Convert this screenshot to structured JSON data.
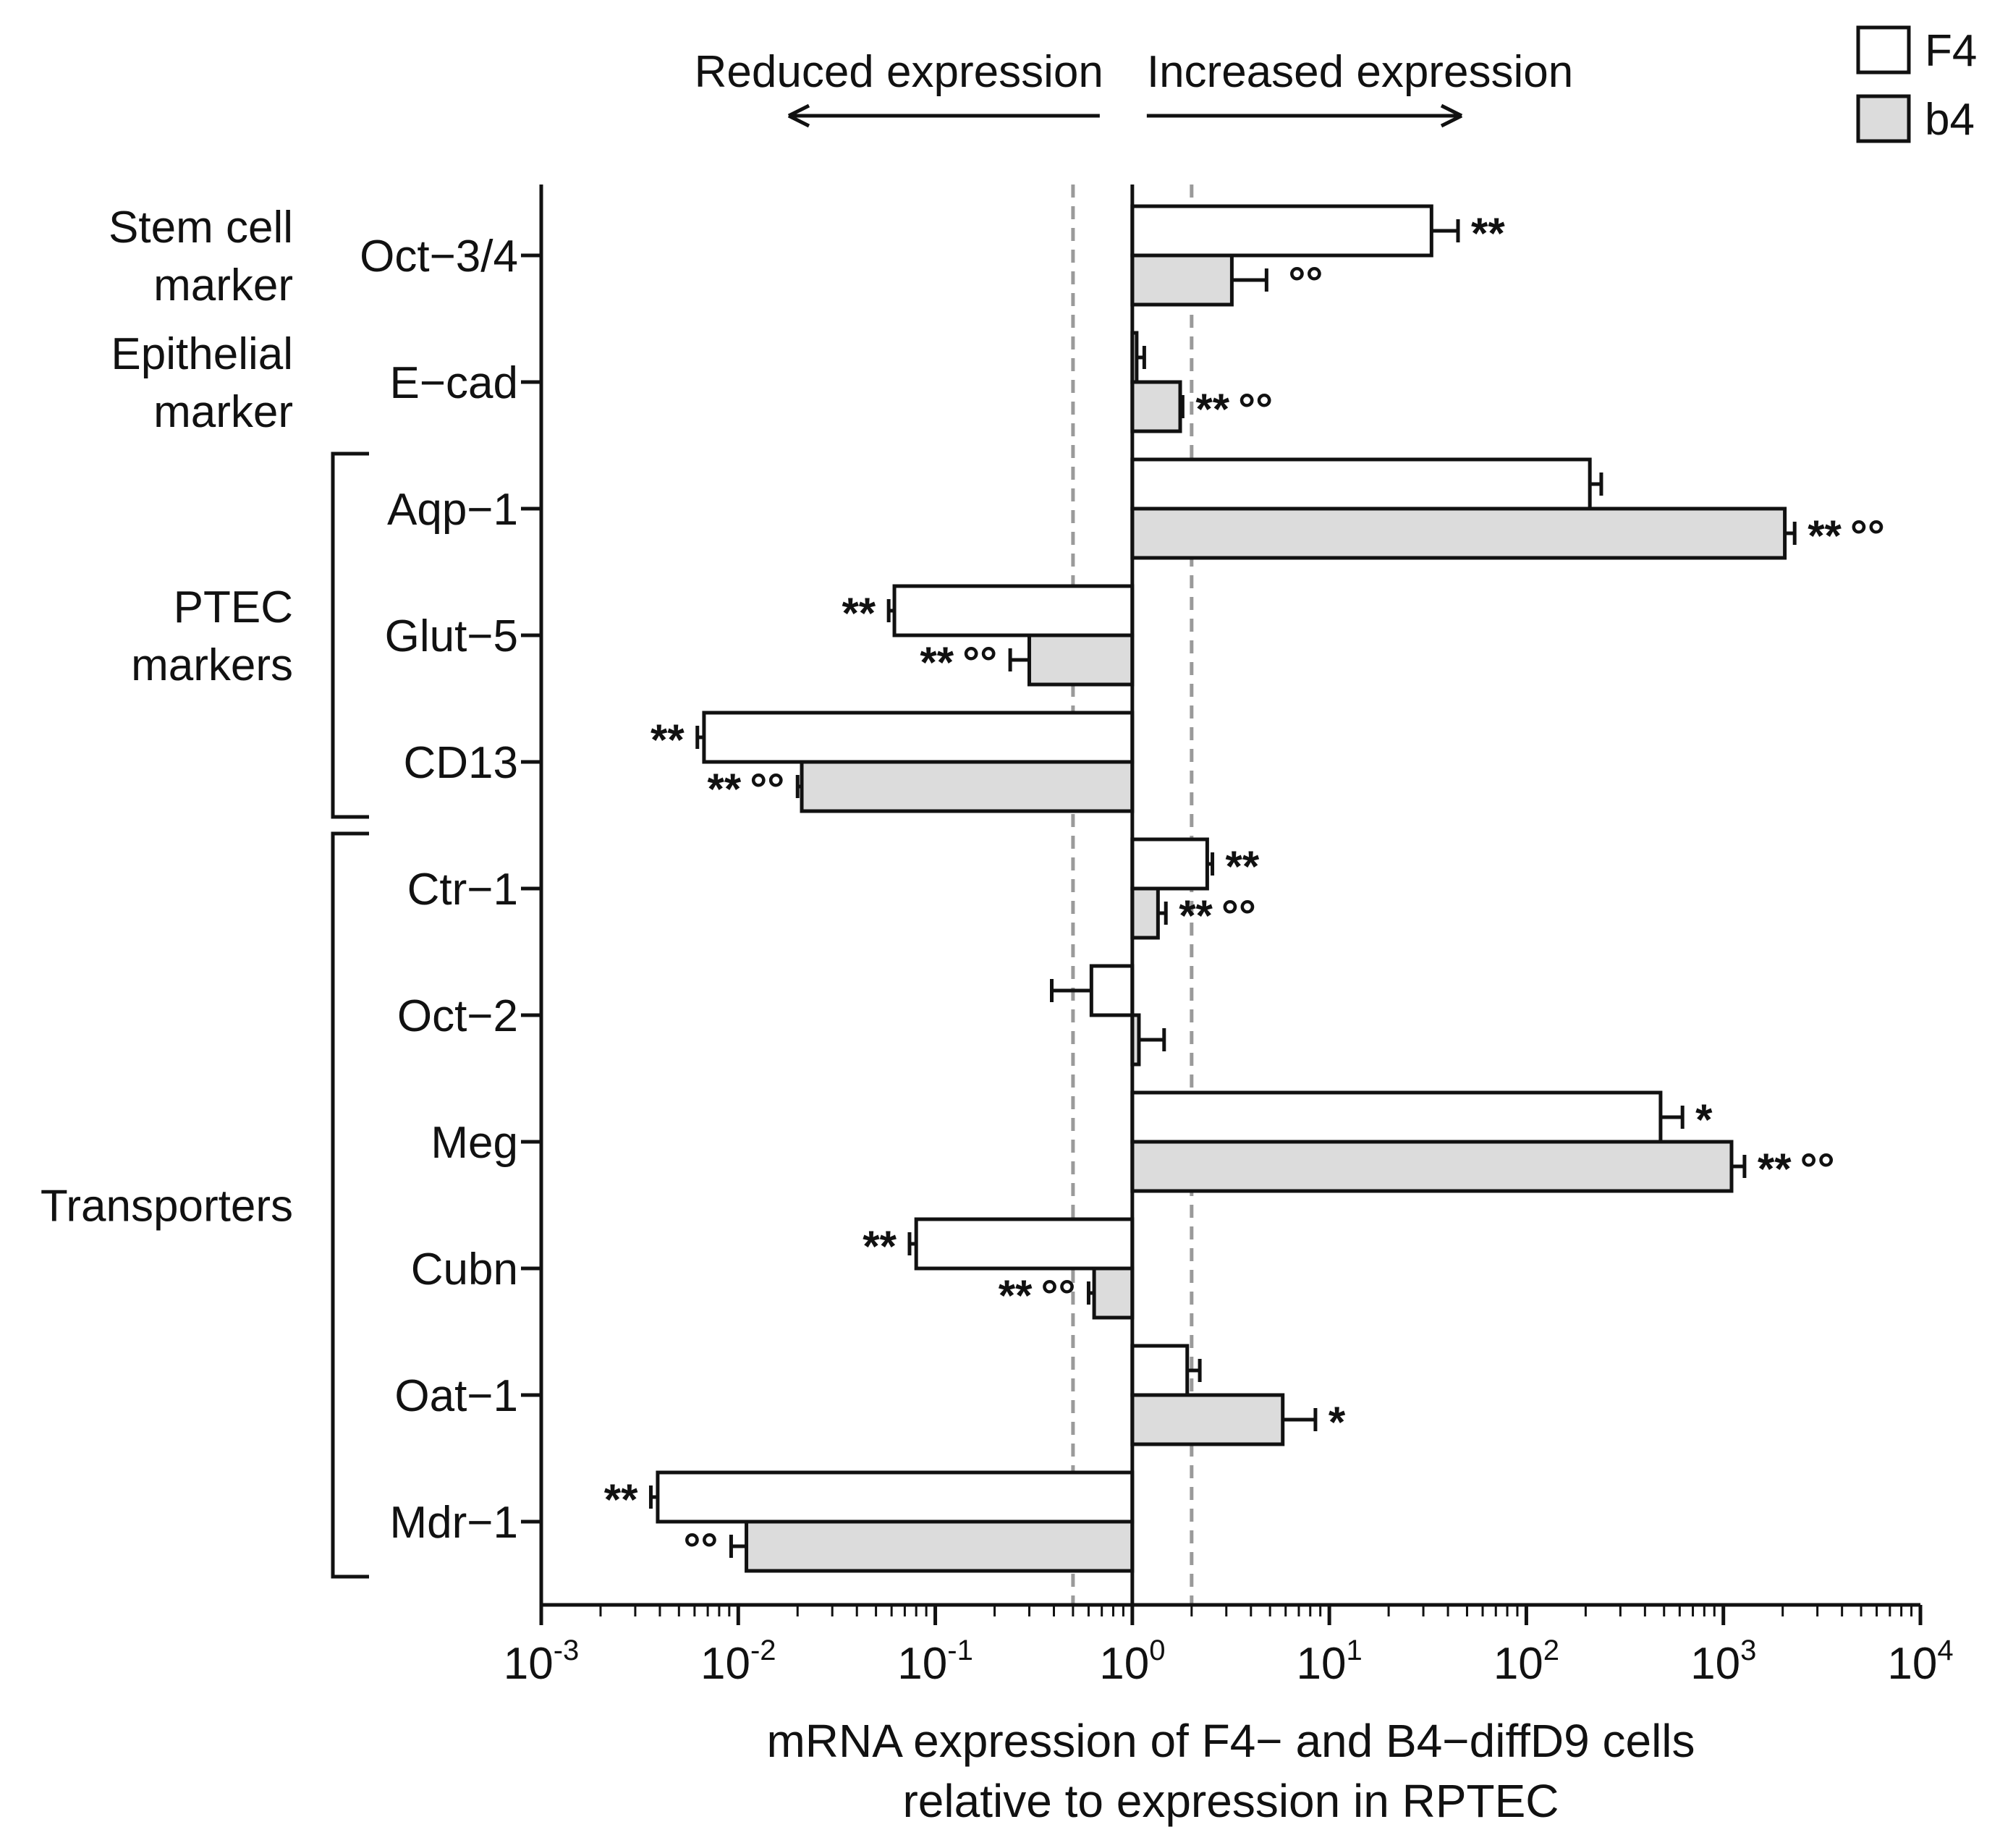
{
  "chart_data": {
    "type": "bar",
    "orientation": "horizontal",
    "xscale": "log",
    "xlim": [
      0.001,
      10000
    ],
    "xlabel_lines": [
      "mRNA expression of F4− and B4−diffD9 cells",
      "relative to expression in RPTEC"
    ],
    "x_ticks": [
      {
        "base": "10",
        "exp": "-3",
        "value": 0.001
      },
      {
        "base": "10",
        "exp": "-2",
        "value": 0.01
      },
      {
        "base": "10",
        "exp": "-1",
        "value": 0.1
      },
      {
        "base": "10",
        "exp": "0",
        "value": 1
      },
      {
        "base": "10",
        "exp": "1",
        "value": 10
      },
      {
        "base": "10",
        "exp": "2",
        "value": 100
      },
      {
        "base": "10",
        "exp": "3",
        "value": 1000
      },
      {
        "base": "10",
        "exp": "4",
        "value": 10000
      }
    ],
    "reference_lines": [
      0.5,
      2
    ],
    "baseline": 1,
    "direction_labels": {
      "left": "Reduced expression",
      "right": "Increased expression"
    },
    "legend": [
      {
        "name": "F4",
        "color": "#ffffff"
      },
      {
        "name": "b4",
        "color": "#dcdcdc"
      }
    ],
    "groups": [
      {
        "label_lines": [
          "Stem cell",
          "marker"
        ],
        "genes": [
          "Oct−3/4"
        ],
        "bracket": false
      },
      {
        "label_lines": [
          "Epithelial",
          "marker"
        ],
        "genes": [
          "E−cad"
        ],
        "bracket": false
      },
      {
        "label_lines": [
          "PTEC",
          "markers"
        ],
        "genes": [
          "Aqp−1",
          "Glut−5",
          "CD13"
        ],
        "bracket": true
      },
      {
        "label_lines": [
          "Transporters"
        ],
        "genes": [
          "Ctr−1",
          "Oct−2",
          "Meg",
          "Cubn",
          "Oat−1",
          "Mdr−1"
        ],
        "bracket": true
      }
    ],
    "categories": [
      "Oct−3/4",
      "E−cad",
      "Aqp−1",
      "Glut−5",
      "CD13",
      "Ctr−1",
      "Oct−2",
      "Meg",
      "Cubn",
      "Oat−1",
      "Mdr−1"
    ],
    "series": [
      {
        "name": "F4",
        "values": [
          33,
          1.05,
          210,
          0.062,
          0.0067,
          2.4,
          0.62,
          480,
          0.08,
          1.9,
          0.0039
        ],
        "error": [
          45,
          1.15,
          240,
          0.058,
          0.0062,
          2.55,
          0.39,
          620,
          0.074,
          2.2,
          0.0036
        ],
        "significance": [
          "**",
          "",
          "",
          "**",
          "**",
          "**",
          "",
          "*",
          "**",
          "",
          "**"
        ],
        "vs_f4": [
          "",
          "",
          "",
          "",
          "",
          "",
          "",
          "",
          "",
          "",
          ""
        ]
      },
      {
        "name": "b4",
        "values": [
          3.2,
          1.75,
          2050,
          0.3,
          0.021,
          1.35,
          1.08,
          1100,
          0.64,
          5.8,
          0.011
        ],
        "error": [
          4.8,
          1.8,
          2300,
          0.24,
          0.02,
          1.48,
          1.45,
          1280,
          0.6,
          8.5,
          0.0092
        ],
        "significance": [
          "",
          "**",
          "**",
          "**",
          "**",
          "**",
          "",
          "**",
          "**",
          "*",
          ""
        ],
        "vs_f4": [
          "oo",
          "oo",
          "oo",
          "oo",
          "oo",
          "oo",
          "",
          "oo",
          "oo",
          "",
          "oo"
        ]
      }
    ]
  }
}
